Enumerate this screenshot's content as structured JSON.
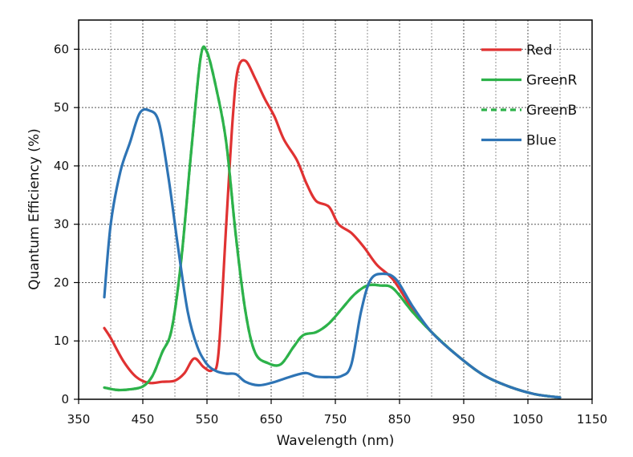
{
  "chart_data": {
    "type": "line",
    "xlabel": "Wavelength (nm)",
    "ylabel": "Quantum Efficiency (%)",
    "xlim": [
      350,
      1150
    ],
    "ylim": [
      0,
      65
    ],
    "xticks": [
      350,
      450,
      550,
      650,
      750,
      850,
      950,
      1050,
      1150
    ],
    "yticks": [
      0,
      10,
      20,
      30,
      40,
      50,
      60
    ],
    "grid": true,
    "legend_position": "top-right",
    "series": [
      {
        "name": "Red",
        "color": "#e03232",
        "dash": "solid",
        "points": [
          [
            390,
            12.2
          ],
          [
            400,
            10.5
          ],
          [
            420,
            6.5
          ],
          [
            440,
            3.8
          ],
          [
            460,
            2.8
          ],
          [
            480,
            3.0
          ],
          [
            500,
            3.2
          ],
          [
            515,
            4.5
          ],
          [
            530,
            7.0
          ],
          [
            545,
            5.5
          ],
          [
            558,
            5.0
          ],
          [
            568,
            8.0
          ],
          [
            580,
            30.0
          ],
          [
            590,
            48.0
          ],
          [
            598,
            56.5
          ],
          [
            610,
            58.0
          ],
          [
            625,
            55.0
          ],
          [
            640,
            51.5
          ],
          [
            655,
            48.5
          ],
          [
            670,
            44.5
          ],
          [
            690,
            41.0
          ],
          [
            705,
            37.0
          ],
          [
            720,
            34.0
          ],
          [
            740,
            33.0
          ],
          [
            755,
            30.0
          ],
          [
            775,
            28.5
          ],
          [
            795,
            26.0
          ],
          [
            815,
            23.0
          ],
          [
            840,
            20.5
          ],
          [
            870,
            15.5
          ],
          [
            900,
            11.5
          ],
          [
            940,
            7.5
          ],
          [
            980,
            4.2
          ],
          [
            1020,
            2.2
          ],
          [
            1060,
            0.9
          ],
          [
            1100,
            0.3
          ]
        ]
      },
      {
        "name": "GreenR",
        "color": "#2db24a",
        "dash": "solid",
        "points": [
          [
            390,
            2.0
          ],
          [
            410,
            1.6
          ],
          [
            430,
            1.7
          ],
          [
            450,
            2.2
          ],
          [
            465,
            4.0
          ],
          [
            480,
            8.0
          ],
          [
            495,
            12.0
          ],
          [
            510,
            24.0
          ],
          [
            525,
            42.0
          ],
          [
            540,
            58.5
          ],
          [
            550,
            59.5
          ],
          [
            565,
            53.0
          ],
          [
            580,
            44.0
          ],
          [
            595,
            28.0
          ],
          [
            610,
            15.0
          ],
          [
            625,
            8.0
          ],
          [
            645,
            6.2
          ],
          [
            665,
            6.0
          ],
          [
            685,
            9.0
          ],
          [
            700,
            11.0
          ],
          [
            720,
            11.5
          ],
          [
            740,
            13.0
          ],
          [
            760,
            15.5
          ],
          [
            780,
            18.0
          ],
          [
            800,
            19.5
          ],
          [
            820,
            19.5
          ],
          [
            840,
            19.0
          ],
          [
            870,
            15.0
          ],
          [
            900,
            11.5
          ],
          [
            940,
            7.5
          ],
          [
            980,
            4.2
          ],
          [
            1020,
            2.2
          ],
          [
            1060,
            0.9
          ],
          [
            1100,
            0.3
          ]
        ]
      },
      {
        "name": "GreenB",
        "color": "#2db24a",
        "dash": "dashed",
        "points": [
          [
            390,
            2.0
          ],
          [
            410,
            1.6
          ],
          [
            430,
            1.7
          ],
          [
            450,
            2.2
          ],
          [
            465,
            4.0
          ],
          [
            480,
            8.0
          ],
          [
            495,
            12.0
          ],
          [
            510,
            24.0
          ],
          [
            525,
            42.0
          ],
          [
            540,
            58.5
          ],
          [
            550,
            59.5
          ],
          [
            565,
            53.0
          ],
          [
            580,
            44.0
          ],
          [
            595,
            28.0
          ],
          [
            610,
            15.0
          ],
          [
            625,
            8.0
          ],
          [
            645,
            6.2
          ],
          [
            665,
            6.0
          ],
          [
            685,
            9.0
          ],
          [
            700,
            11.0
          ],
          [
            720,
            11.5
          ],
          [
            740,
            13.0
          ],
          [
            760,
            15.5
          ],
          [
            780,
            18.0
          ],
          [
            800,
            19.5
          ],
          [
            820,
            19.5
          ],
          [
            840,
            19.0
          ],
          [
            870,
            15.0
          ],
          [
            900,
            11.5
          ],
          [
            940,
            7.5
          ],
          [
            980,
            4.2
          ],
          [
            1020,
            2.2
          ],
          [
            1060,
            0.9
          ],
          [
            1100,
            0.3
          ]
        ]
      },
      {
        "name": "Blue",
        "color": "#2e74b5",
        "dash": "solid",
        "points": [
          [
            390,
            17.5
          ],
          [
            400,
            30.0
          ],
          [
            415,
            39.0
          ],
          [
            430,
            44.0
          ],
          [
            445,
            49.0
          ],
          [
            460,
            49.5
          ],
          [
            475,
            47.5
          ],
          [
            490,
            38.0
          ],
          [
            505,
            26.0
          ],
          [
            520,
            15.0
          ],
          [
            535,
            9.0
          ],
          [
            550,
            6.0
          ],
          [
            565,
            4.8
          ],
          [
            580,
            4.4
          ],
          [
            595,
            4.3
          ],
          [
            610,
            3.0
          ],
          [
            630,
            2.4
          ],
          [
            650,
            2.8
          ],
          [
            670,
            3.5
          ],
          [
            690,
            4.2
          ],
          [
            705,
            4.5
          ],
          [
            720,
            3.9
          ],
          [
            740,
            3.8
          ],
          [
            760,
            4.0
          ],
          [
            775,
            6.0
          ],
          [
            790,
            15.0
          ],
          [
            805,
            20.5
          ],
          [
            825,
            21.5
          ],
          [
            845,
            20.5
          ],
          [
            870,
            16.0
          ],
          [
            900,
            11.5
          ],
          [
            940,
            7.5
          ],
          [
            980,
            4.2
          ],
          [
            1020,
            2.2
          ],
          [
            1060,
            0.9
          ],
          [
            1100,
            0.3
          ]
        ]
      }
    ]
  }
}
